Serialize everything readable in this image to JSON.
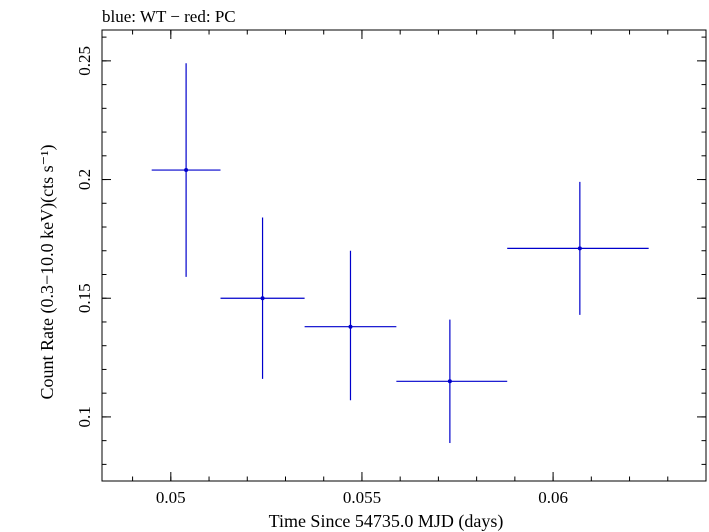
{
  "chart_data": {
    "type": "scatter",
    "title": "blue: WT − red: PC",
    "xlabel": "Time Since 54735.0 MJD (days)",
    "ylabel": "Count Rate (0.3−10.0 keV)(cts s⁻¹)",
    "xlim": [
      0.0482,
      0.064
    ],
    "ylim": [
      0.073,
      0.263
    ],
    "x_ticks": [
      {
        "value": 0.05,
        "label": "0.05"
      },
      {
        "value": 0.055,
        "label": "0.055"
      },
      {
        "value": 0.06,
        "label": "0.06"
      }
    ],
    "y_ticks": [
      {
        "value": 0.1,
        "label": "0.1"
      },
      {
        "value": 0.15,
        "label": "0.15"
      },
      {
        "value": 0.2,
        "label": "0.2"
      },
      {
        "value": 0.25,
        "label": "0.25"
      }
    ],
    "x_minor_step": 0.001,
    "y_minor_step": 0.01,
    "grid": false,
    "series": [
      {
        "name": "WT",
        "color": "#0000cc",
        "points": [
          {
            "x": 0.0504,
            "y": 0.204,
            "x_lo": 0.0495,
            "x_hi": 0.0513,
            "y_lo": 0.159,
            "y_hi": 0.249
          },
          {
            "x": 0.0524,
            "y": 0.15,
            "x_lo": 0.0513,
            "x_hi": 0.0535,
            "y_lo": 0.116,
            "y_hi": 0.184
          },
          {
            "x": 0.0547,
            "y": 0.138,
            "x_lo": 0.0535,
            "x_hi": 0.0559,
            "y_lo": 0.107,
            "y_hi": 0.17
          },
          {
            "x": 0.0573,
            "y": 0.115,
            "x_lo": 0.0559,
            "x_hi": 0.0588,
            "y_lo": 0.089,
            "y_hi": 0.141
          },
          {
            "x": 0.0607,
            "y": 0.171,
            "x_lo": 0.0588,
            "x_hi": 0.0625,
            "y_lo": 0.143,
            "y_hi": 0.199
          }
        ]
      }
    ]
  }
}
